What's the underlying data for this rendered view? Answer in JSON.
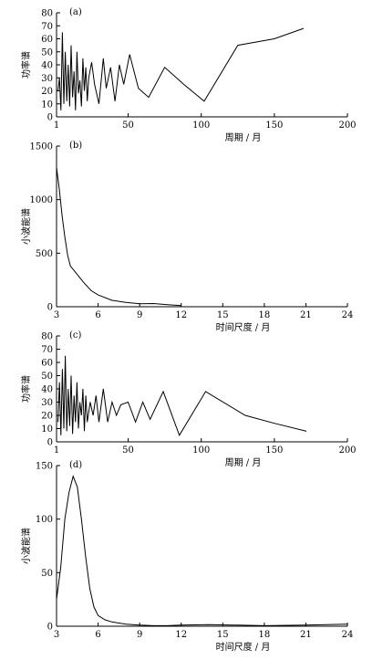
{
  "chart_data": [
    {
      "panel_label": "(a)",
      "type": "line",
      "ylabel": "功率谱",
      "xlabel": "周期 / 月",
      "xlim": [
        1,
        200
      ],
      "ylim": [
        0,
        80
      ],
      "x_ticks": [
        1,
        50,
        100,
        150,
        200
      ],
      "x_tick_labels": [
        "1",
        "50",
        "100",
        "150",
        "200"
      ],
      "y_ticks": [
        0,
        10,
        20,
        30,
        40,
        50,
        60,
        70,
        80
      ],
      "y_tick_labels": [
        "0",
        "10",
        "20",
        "30",
        "40",
        "50",
        "60",
        "70",
        "80"
      ],
      "x": [
        2,
        3,
        4,
        5,
        6,
        7,
        8,
        9,
        10,
        11,
        12,
        13,
        14,
        15,
        16,
        17,
        18,
        19,
        20,
        21,
        22,
        23,
        25,
        27,
        30,
        33,
        35,
        38,
        41,
        44,
        47,
        51,
        57,
        64,
        75,
        88,
        102,
        125,
        150,
        170
      ],
      "values": [
        20,
        30,
        5,
        65,
        10,
        50,
        12,
        40,
        8,
        55,
        15,
        35,
        5,
        50,
        18,
        28,
        8,
        45,
        20,
        38,
        12,
        30,
        42,
        25,
        10,
        45,
        22,
        38,
        12,
        40,
        25,
        48,
        22,
        15,
        38,
        25,
        12,
        55,
        60,
        68
      ]
    },
    {
      "panel_label": "(b)",
      "type": "line",
      "ylabel": "小波能谱",
      "xlabel": "时间尺度 / 月",
      "xlim": [
        3,
        24
      ],
      "ylim": [
        0,
        1500
      ],
      "x_ticks": [
        3,
        6,
        9,
        12,
        15,
        18,
        21,
        24
      ],
      "x_tick_labels": [
        "3",
        "6",
        "9",
        "12",
        "15",
        "18",
        "21",
        "24"
      ],
      "y_ticks": [
        0,
        500,
        1000,
        1500
      ],
      "y_tick_labels": [
        "0",
        "500",
        "1000",
        "1500"
      ],
      "x": [
        3.0,
        3.2,
        3.4,
        3.6,
        3.8,
        4.0,
        4.5,
        5.0,
        5.5,
        6.0,
        7.0,
        8.0,
        9.0,
        10.0,
        10.5,
        11.0,
        11.5,
        12.0
      ],
      "values": [
        1300,
        1100,
        850,
        650,
        480,
        380,
        300,
        220,
        150,
        110,
        60,
        40,
        28,
        30,
        25,
        20,
        15,
        10
      ]
    },
    {
      "panel_label": "(c)",
      "type": "line",
      "ylabel": "功率谱",
      "xlabel": "周期 / 月",
      "xlim": [
        1,
        200
      ],
      "ylim": [
        0,
        80
      ],
      "x_ticks": [
        1,
        50,
        100,
        150,
        200
      ],
      "x_tick_labels": [
        "1",
        "50",
        "100",
        "150",
        "200"
      ],
      "y_ticks": [
        0,
        10,
        20,
        30,
        40,
        50,
        60,
        70,
        80
      ],
      "y_tick_labels": [
        "0",
        "10",
        "20",
        "30",
        "40",
        "50",
        "60",
        "70",
        "80"
      ],
      "x": [
        2,
        3,
        4,
        5,
        6,
        7,
        8,
        9,
        10,
        11,
        12,
        13,
        14,
        15,
        16,
        17,
        18,
        19,
        20,
        21,
        22,
        24,
        26,
        28,
        30,
        33,
        36,
        39,
        42,
        45,
        50,
        55,
        60,
        65,
        74,
        85,
        103,
        130,
        150,
        172
      ],
      "values": [
        15,
        45,
        5,
        55,
        10,
        65,
        8,
        40,
        12,
        50,
        6,
        35,
        15,
        45,
        10,
        30,
        20,
        40,
        8,
        35,
        15,
        30,
        20,
        35,
        15,
        40,
        15,
        30,
        20,
        28,
        30,
        15,
        30,
        17,
        38,
        5,
        38,
        20,
        14,
        8
      ]
    },
    {
      "panel_label": "(d)",
      "type": "line",
      "ylabel": "小波能谱",
      "xlabel": "时间尺度 / 月",
      "xlim": [
        3,
        24
      ],
      "ylim": [
        0,
        150
      ],
      "x_ticks": [
        3,
        6,
        9,
        12,
        15,
        18,
        21,
        24
      ],
      "x_tick_labels": [
        "3",
        "6",
        "9",
        "12",
        "15",
        "18",
        "21",
        "24"
      ],
      "y_ticks": [
        0,
        50,
        100,
        150
      ],
      "y_tick_labels": [
        "0",
        "50",
        "100",
        "150"
      ],
      "x": [
        3.0,
        3.3,
        3.6,
        3.9,
        4.2,
        4.5,
        4.8,
        5.1,
        5.4,
        5.7,
        6.0,
        6.5,
        7.0,
        8.0,
        9.0,
        10.0,
        11.0,
        12.0,
        14.0,
        16.0,
        18.0,
        21.0,
        24.0
      ],
      "values": [
        25,
        55,
        100,
        125,
        140,
        130,
        100,
        65,
        35,
        18,
        10,
        6,
        4,
        2,
        1,
        0.5,
        0.5,
        1,
        1.5,
        1,
        0.5,
        1,
        2
      ]
    }
  ]
}
